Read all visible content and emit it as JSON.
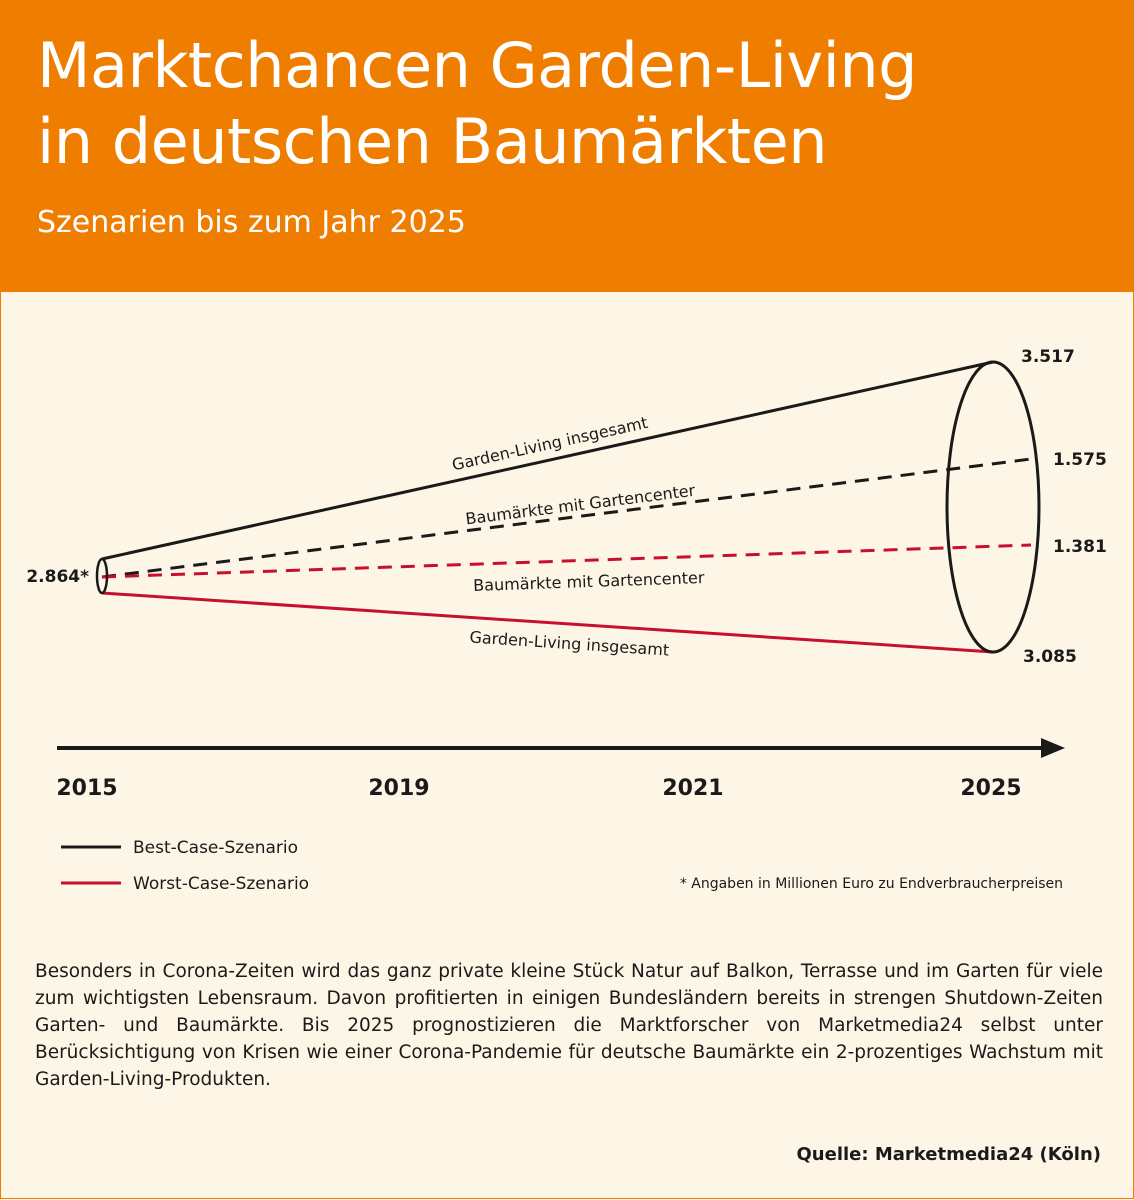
{
  "header": {
    "title_line1": "Marktchancen Garden-Living",
    "title_line2": "in deutschen Baumärkten",
    "subtitle": "Szenarien bis zum Jahr 2025"
  },
  "colors": {
    "header_bg": "#ef7d00",
    "page_bg": "#fdf6e6",
    "best_case": "#1a1a1a",
    "worst_case": "#c8102e"
  },
  "chart_data": {
    "type": "line",
    "x": [
      "2015",
      "2019",
      "2021",
      "2025"
    ],
    "start": {
      "year": "2015",
      "value": 2864,
      "label": "2.864*"
    },
    "series": [
      {
        "name": "Garden-Living insgesamt",
        "scenario": "Best-Case-Szenario",
        "style": "solid",
        "color": "#1a1a1a",
        "from": 2864,
        "to": 3517,
        "end_label": "3.517"
      },
      {
        "name": "Baumärkte mit Gartencenter",
        "scenario": "Best-Case-Szenario",
        "style": "dashed",
        "color": "#1a1a1a",
        "to": 1575,
        "end_label": "1.575"
      },
      {
        "name": "Baumärkte mit Gartencenter",
        "scenario": "Worst-Case-Szenario",
        "style": "dashed",
        "color": "#c8102e",
        "to": 1381,
        "end_label": "1.381"
      },
      {
        "name": "Garden-Living insgesamt",
        "scenario": "Worst-Case-Szenario",
        "style": "solid",
        "color": "#c8102e",
        "from": 2864,
        "to": 3085,
        "end_label": "3.085"
      }
    ],
    "legend": [
      {
        "label": "Best-Case-Szenario",
        "color": "#1a1a1a"
      },
      {
        "label": "Worst-Case-Szenario",
        "color": "#c8102e"
      }
    ],
    "legend_position": "bottom-left",
    "footnote": "* Angaben in Millionen Euro zu Endverbraucherpreisen"
  },
  "body_text": "Besonders in Corona-Zeiten wird das ganz private kleine Stück Natur auf Balkon, Terrasse und im Garten für viele zum wichtigsten Lebensraum. Davon profitierten in einigen Bundesländern bereits in strengen Shutdown-Zeiten Garten- und Baumärkte. Bis 2025 prognostizieren die Marktforscher von Marketmedia24 selbst unter Berücksichtigung von Krisen wie einer Corona-Pandemie für deut­sche Baumärkte ein 2-prozentiges Wachstum mit Garden-Living-Produkten.",
  "source": "Quelle: Marketmedia24 (Köln)"
}
